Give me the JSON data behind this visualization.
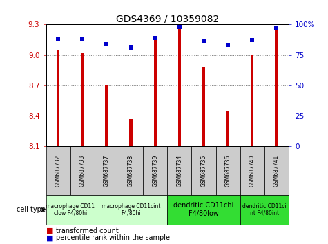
{
  "title": "GDS4369 / 10359082",
  "samples": [
    "GSM687732",
    "GSM687733",
    "GSM687737",
    "GSM687738",
    "GSM687739",
    "GSM687734",
    "GSM687735",
    "GSM687736",
    "GSM687740",
    "GSM687741"
  ],
  "transformed_counts": [
    9.05,
    9.02,
    8.7,
    8.37,
    9.18,
    9.29,
    8.88,
    8.45,
    9.0,
    9.29
  ],
  "percentile_ranks": [
    88,
    88,
    84,
    81,
    89,
    98,
    86,
    83,
    87,
    97
  ],
  "ylim_left": [
    8.1,
    9.3
  ],
  "ylim_right": [
    0,
    100
  ],
  "yticks_left": [
    8.1,
    8.4,
    8.7,
    9.0,
    9.3
  ],
  "yticks_right": [
    0,
    25,
    50,
    75,
    100
  ],
  "cell_type_groups": [
    {
      "label": "macrophage CD11\nclow F4/80hi",
      "start": 0,
      "end": 2,
      "color": "#ccffcc",
      "fontsize": 5.5
    },
    {
      "label": "macrophage CD11cint\nF4/80hi",
      "start": 2,
      "end": 5,
      "color": "#ccffcc",
      "fontsize": 5.5
    },
    {
      "label": "dendritic CD11chi\nF4/80low",
      "start": 5,
      "end": 8,
      "color": "#33dd33",
      "fontsize": 7
    },
    {
      "label": "dendritic CD11ci\nnt F4/80int",
      "start": 8,
      "end": 10,
      "color": "#33dd33",
      "fontsize": 5.5
    }
  ],
  "bar_color": "#cc0000",
  "dot_color": "#0000cc",
  "grid_color": "#777777",
  "bg_color": "#ffffff",
  "tick_color_left": "#cc0000",
  "tick_color_right": "#0000cc",
  "sample_box_color": "#cccccc",
  "bar_bottom": 8.1,
  "bar_width": 0.12
}
